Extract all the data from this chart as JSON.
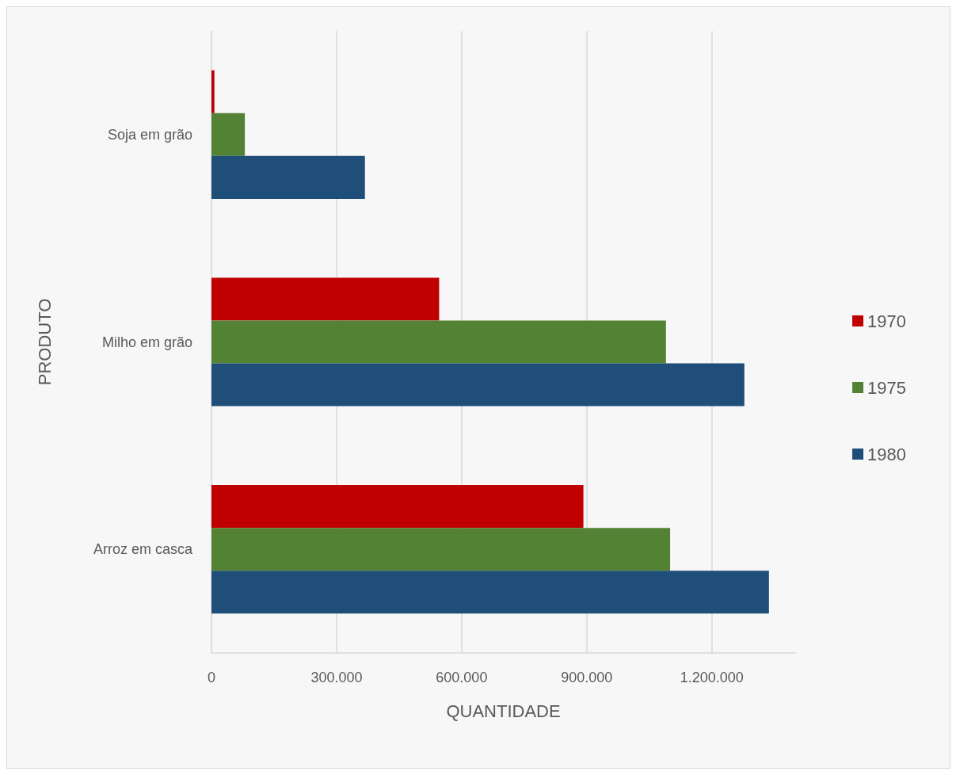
{
  "chart_data": {
    "type": "bar",
    "orientation": "horizontal",
    "xlabel": "QUANTIDADE",
    "ylabel": "PRODUTO",
    "categories": [
      "Soja em grão",
      "Milho em grão",
      "Arroz em casca"
    ],
    "series": [
      {
        "name": "1970",
        "color": "#c00000",
        "values": [
          7000,
          546000,
          892000
        ]
      },
      {
        "name": "1975",
        "color": "#548235",
        "values": [
          80000,
          1090000,
          1100000
        ]
      },
      {
        "name": "1980",
        "color": "#1f4e79",
        "values": [
          368000,
          1278000,
          1337000
        ]
      }
    ],
    "xlim": [
      0,
      1400000
    ],
    "xticks": [
      0,
      {
        "value": 300000,
        "label": "300.000"
      },
      {
        "value": 600000,
        "label": "600.000"
      },
      {
        "value": 900000,
        "label": "900.000"
      },
      {
        "value": 1200000,
        "label": "1.200.000"
      }
    ],
    "grid": "x",
    "legend": "right"
  }
}
